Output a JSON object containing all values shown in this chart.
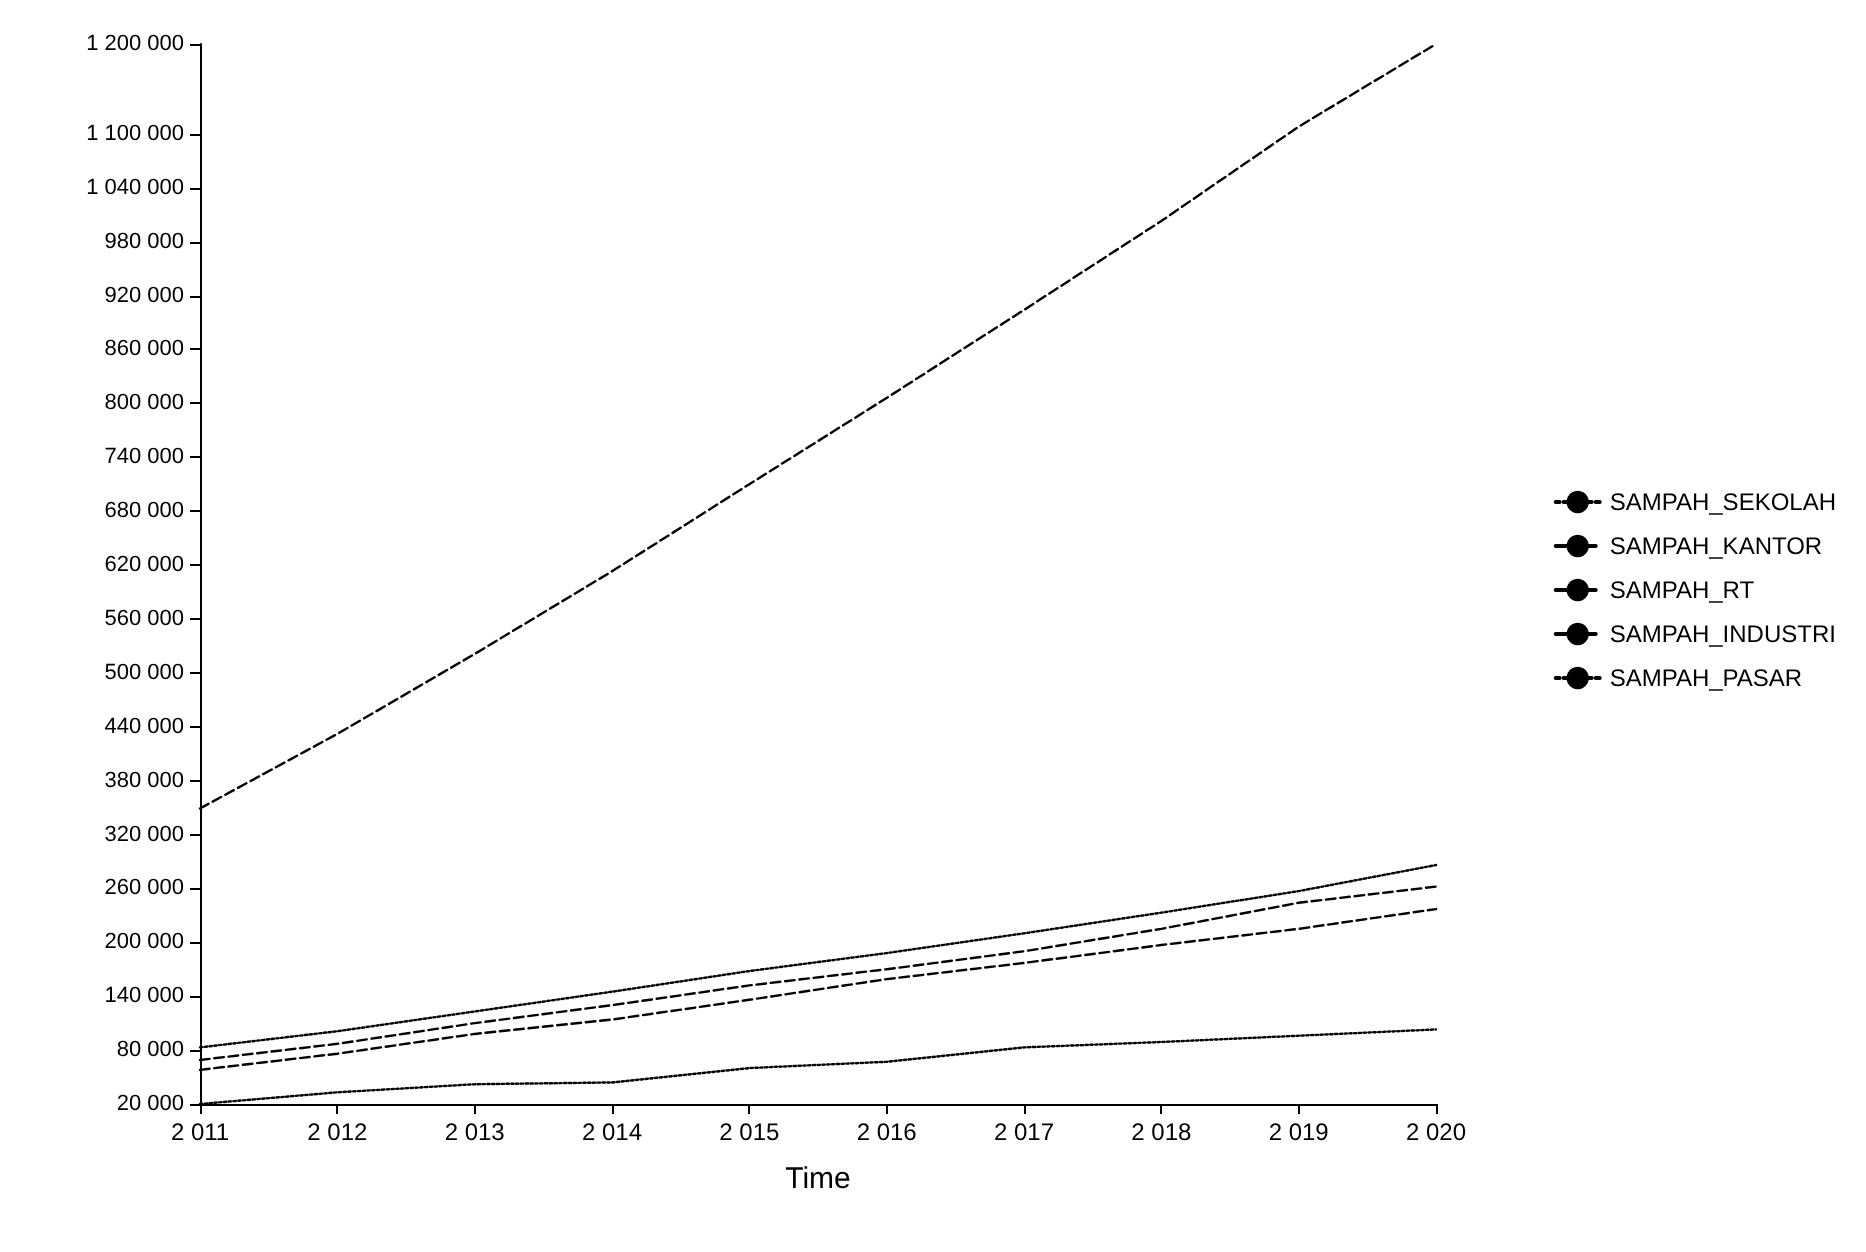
{
  "chart_data": {
    "type": "line",
    "xlabel": "Time",
    "x": [
      2011,
      2012,
      2013,
      2014,
      2015,
      2016,
      2017,
      2018,
      2019,
      2020
    ],
    "xlim": [
      2011,
      2020
    ],
    "xticks": [
      {
        "value": 2011,
        "label": "2 011"
      },
      {
        "value": 2012,
        "label": "2 012"
      },
      {
        "value": 2013,
        "label": "2 013"
      },
      {
        "value": 2014,
        "label": "2 014"
      },
      {
        "value": 2015,
        "label": "2 015"
      },
      {
        "value": 2016,
        "label": "2 016"
      },
      {
        "value": 2017,
        "label": "2 017"
      },
      {
        "value": 2018,
        "label": "2 018"
      },
      {
        "value": 2019,
        "label": "2 019"
      },
      {
        "value": 2020,
        "label": "2 020"
      }
    ],
    "ylim": [
      20000,
      1200000
    ],
    "yticks": [
      {
        "value": 20000,
        "label": "20 000"
      },
      {
        "value": 80000,
        "label": "80 000"
      },
      {
        "value": 140000,
        "label": "140 000"
      },
      {
        "value": 200000,
        "label": "200 000"
      },
      {
        "value": 260000,
        "label": "260 000"
      },
      {
        "value": 320000,
        "label": "320 000"
      },
      {
        "value": 380000,
        "label": "380 000"
      },
      {
        "value": 440000,
        "label": "440 000"
      },
      {
        "value": 500000,
        "label": "500 000"
      },
      {
        "value": 560000,
        "label": "560 000"
      },
      {
        "value": 620000,
        "label": "620 000"
      },
      {
        "value": 680000,
        "label": "680 000"
      },
      {
        "value": 740000,
        "label": "740 000"
      },
      {
        "value": 800000,
        "label": "800 000"
      },
      {
        "value": 860000,
        "label": "860 000"
      },
      {
        "value": 920000,
        "label": "920 000"
      },
      {
        "value": 980000,
        "label": "980 000"
      },
      {
        "value": 1040000,
        "label": "1 040 000"
      },
      {
        "value": 1100000,
        "label": "1 100 000"
      },
      {
        "value": 1200000,
        "label": "1 200 000"
      }
    ],
    "series": [
      {
        "name": "SAMPAH_SEKOLAH",
        "color": "#000000",
        "line_style": "dotted",
        "values": [
          20000,
          33000,
          42000,
          44000,
          60000,
          67000,
          83000,
          89000,
          96000,
          103000
        ]
      },
      {
        "name": "SAMPAH_KANTOR",
        "color": "#000000",
        "line_style": "dashed",
        "values": [
          58000,
          76000,
          98000,
          114000,
          136000,
          159000,
          177000,
          197000,
          215000,
          237000
        ]
      },
      {
        "name": "SAMPAH_RT",
        "color": "#000000",
        "line_style": "dashed",
        "values": [
          349000,
          432000,
          521000,
          613000,
          710000,
          806000,
          904000,
          1003000,
          1108000,
          1200000
        ]
      },
      {
        "name": "SAMPAH_INDUSTRI",
        "color": "#000000",
        "line_style": "dashed",
        "values": [
          69000,
          87000,
          110000,
          130000,
          152000,
          170000,
          190000,
          215000,
          244000,
          262000
        ]
      },
      {
        "name": "SAMPAH_PASAR",
        "color": "#000000",
        "line_style": "dotted",
        "values": [
          83000,
          101000,
          123000,
          145000,
          168000,
          188000,
          210000,
          233000,
          257000,
          286000
        ]
      }
    ],
    "marker": "none",
    "grid": false,
    "legend": "right"
  }
}
